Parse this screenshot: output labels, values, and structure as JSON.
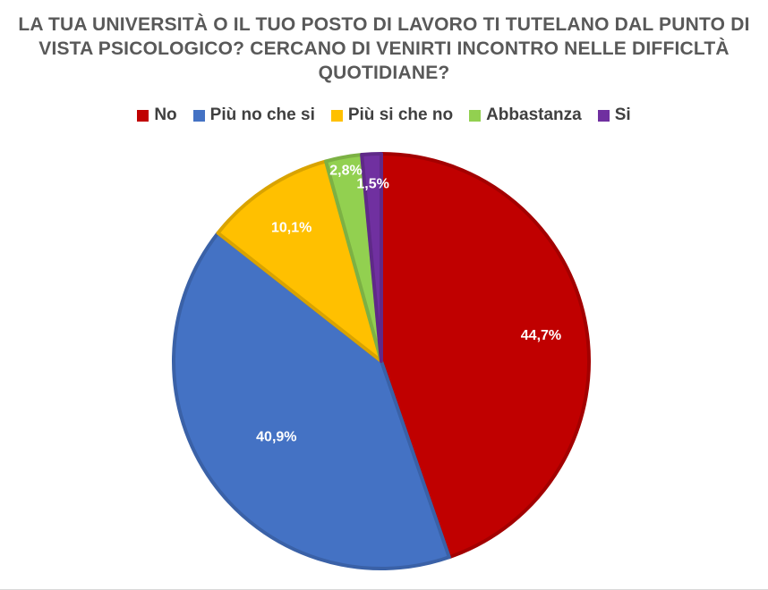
{
  "chart_data": {
    "type": "pie",
    "title_lines": [
      "LA TUA UNIVERSITÀ O IL TUO POSTO DI LAVORO TI TUTELANO DAL PUNTO DI",
      "VISTA PSICOLOGICO? CERCANO DI VENIRTI INCONTRO NELLE DIFFICLTÀ",
      "QUOTIDIANE?"
    ],
    "legend_position": "top",
    "slices": [
      {
        "name": "No",
        "value": 44.7,
        "label": "44,7%",
        "color": "#c00000"
      },
      {
        "name": "Più no che si",
        "value": 40.9,
        "label": "40,9%",
        "color": "#4472c4"
      },
      {
        "name": "Più si che no",
        "value": 10.1,
        "label": "10,1%",
        "color": "#ffc000"
      },
      {
        "name": "Abbastanza",
        "value": 2.8,
        "label": "2,8%",
        "color": "#92d050"
      },
      {
        "name": "Si",
        "value": 1.5,
        "label": "1,5%",
        "color": "#7030a0"
      }
    ]
  }
}
